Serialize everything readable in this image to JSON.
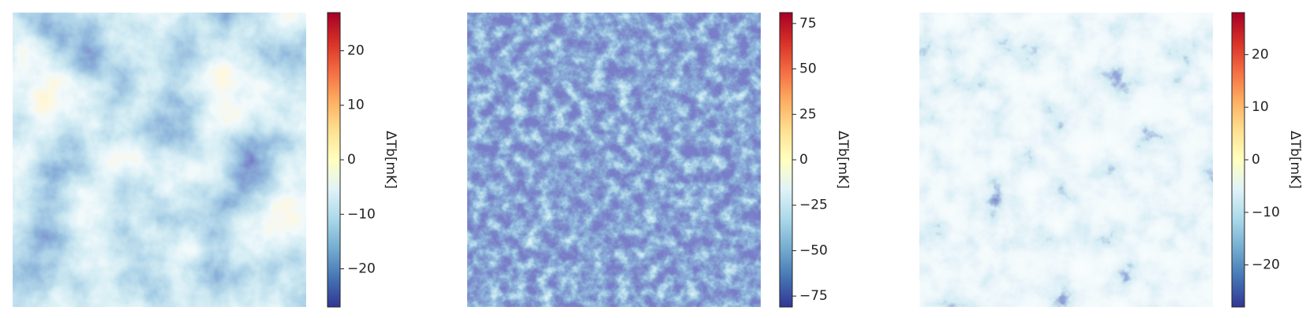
{
  "chart_data": [
    {
      "type": "heatmap",
      "colormap": "RdYlBu_r",
      "colorbar": {
        "label": "ΔTb[mK]",
        "clim": [
          -27,
          27
        ],
        "ticks": [
          {
            "value": -20,
            "label": "−20"
          },
          {
            "value": -10,
            "label": "−10"
          },
          0,
          10,
          20
        ]
      }
    },
    {
      "type": "heatmap",
      "colormap": "RdYlBu_r",
      "colorbar": {
        "label": "ΔTb[mK]",
        "clim": [
          -81,
          81
        ],
        "ticks": [
          {
            "value": -75,
            "label": "−75"
          },
          {
            "value": -50,
            "label": "−50"
          },
          {
            "value": -25,
            "label": "−25"
          },
          0,
          25,
          50,
          75
        ]
      }
    },
    {
      "type": "heatmap",
      "colormap": "RdYlBu_r",
      "colorbar": {
        "label": "ΔTb[mK]",
        "clim": [
          -28,
          28
        ],
        "ticks": [
          {
            "value": -20,
            "label": "−20"
          },
          {
            "value": -10,
            "label": "−10"
          },
          0,
          10,
          20
        ]
      }
    }
  ]
}
